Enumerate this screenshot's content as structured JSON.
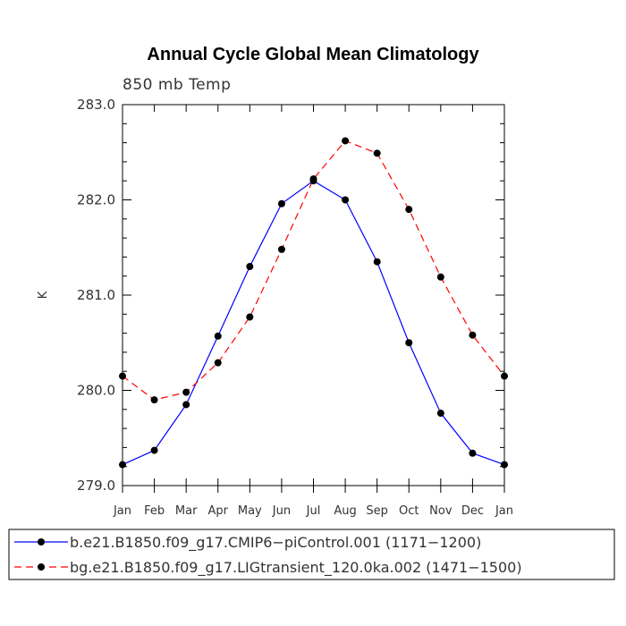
{
  "chart_data": {
    "type": "line",
    "title": "Annual Cycle Global Mean Climatology",
    "subtitle": "850 mb Temp",
    "ylabel": "K",
    "xlabel": "",
    "ylim": [
      279.0,
      283.0
    ],
    "yticks": [
      "279.0",
      "280.0",
      "281.0",
      "282.0",
      "283.0"
    ],
    "ytick_values": [
      279.0,
      280.0,
      281.0,
      282.0,
      283.0
    ],
    "categories": [
      "Jan",
      "Feb",
      "Mar",
      "Apr",
      "May",
      "Jun",
      "Jul",
      "Aug",
      "Sep",
      "Oct",
      "Nov",
      "Dec",
      "Jan"
    ],
    "series": [
      {
        "name": "b.e21.B1850.f09_g17.CMIP6−piControl.001 (1171−1200)",
        "color": "#0000ff",
        "style": "solid",
        "values": [
          279.22,
          279.37,
          279.85,
          280.57,
          281.3,
          281.96,
          282.2,
          282.0,
          281.35,
          280.5,
          279.76,
          279.34,
          279.22
        ]
      },
      {
        "name": "bg.e21.B1850.f09_g17.LIGtransient_120.0ka.002 (1471−1500)",
        "color": "#ff0000",
        "style": "dashed",
        "values": [
          280.15,
          279.9,
          279.98,
          280.29,
          280.77,
          281.48,
          282.22,
          282.62,
          282.49,
          281.9,
          281.19,
          280.58,
          280.15
        ]
      }
    ],
    "legend_position": "bottom"
  }
}
